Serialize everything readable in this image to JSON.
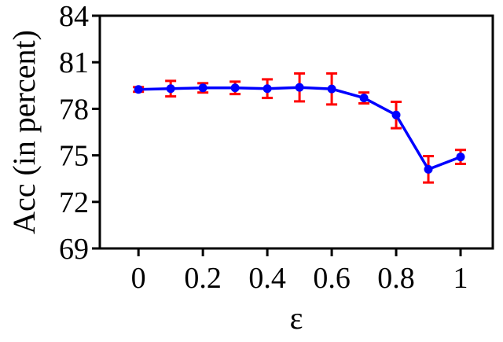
{
  "chart_data": {
    "type": "line",
    "title": "",
    "xlabel": "ε",
    "ylabel": "Acc (in percent)",
    "xlim": [
      -0.12,
      1.1
    ],
    "ylim": [
      69,
      84
    ],
    "xticks": [
      0,
      0.2,
      0.4,
      0.6,
      0.8,
      1
    ],
    "xtick_labels": [
      "0",
      "0.2",
      "0.4",
      "0.6",
      "0.8",
      "1"
    ],
    "yticks": [
      69,
      72,
      75,
      78,
      81,
      84
    ],
    "ytick_labels": [
      "69",
      "72",
      "75",
      "78",
      "81",
      "84"
    ],
    "grid": false,
    "legend": "none",
    "series": [
      {
        "x": [
          0,
          0.1,
          0.2,
          0.3,
          0.4,
          0.5,
          0.6,
          0.7,
          0.8,
          0.9,
          1.0
        ],
        "y": [
          79.25,
          79.3,
          79.35,
          79.35,
          79.3,
          79.38,
          79.28,
          78.7,
          77.6,
          74.1,
          74.9
        ],
        "yerr": [
          0.15,
          0.5,
          0.3,
          0.4,
          0.6,
          0.9,
          1.0,
          0.35,
          0.85,
          0.85,
          0.45
        ],
        "line_color": "#0000ff",
        "marker_color": "#0000ff",
        "errorbar_color": "#ff0000"
      }
    ]
  }
}
